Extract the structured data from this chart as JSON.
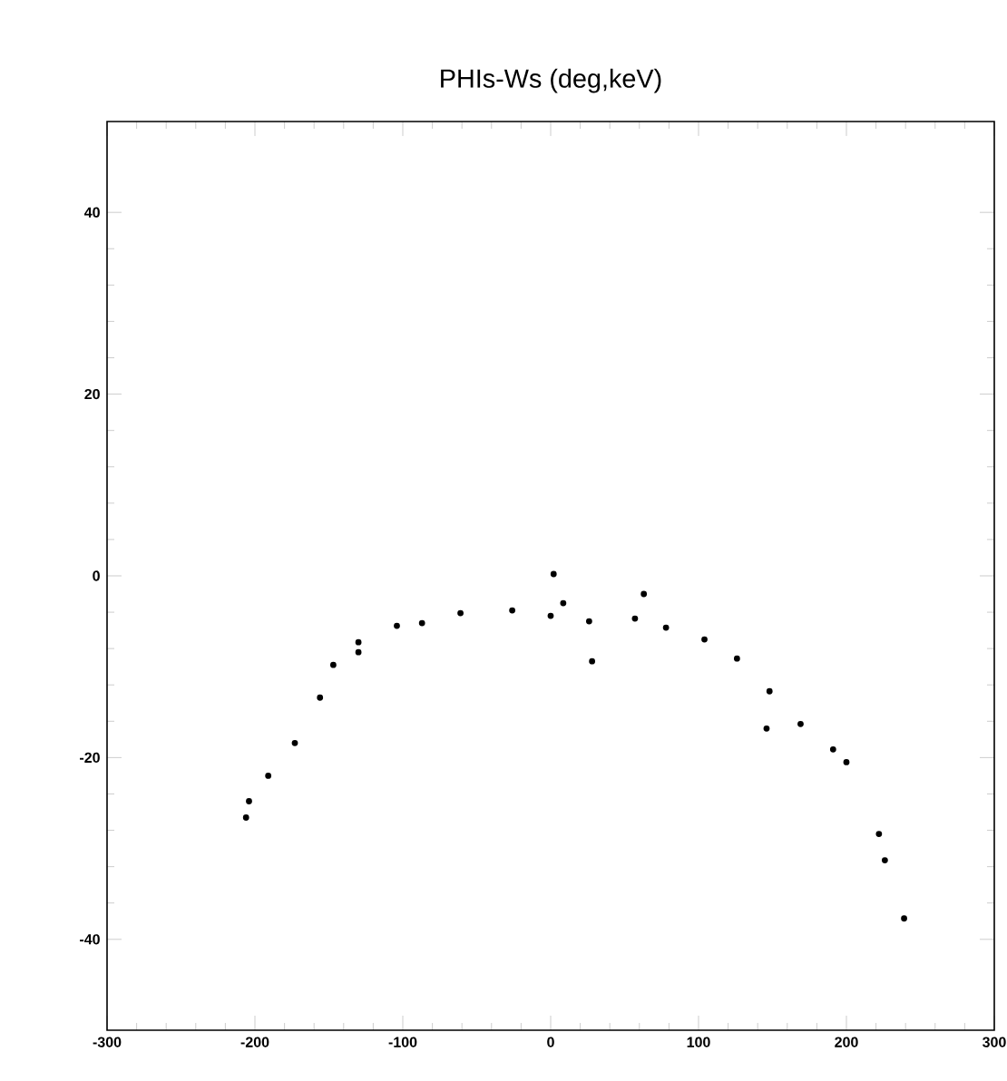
{
  "chart_data": {
    "type": "scatter",
    "title": "PHIs-Ws (deg,keV)",
    "x": [
      -206,
      -204,
      -191,
      -173,
      -156,
      -147,
      -130,
      -130,
      -104,
      -87,
      -61,
      -26,
      0,
      2,
      8.5,
      26,
      28,
      57,
      63,
      78,
      104,
      126,
      146,
      148,
      169,
      191,
      200,
      222,
      226,
      239
    ],
    "values": [
      -26.6,
      -24.8,
      -22,
      -18.4,
      -13.4,
      -9.8,
      -8.4,
      -7.3,
      -5.5,
      -5.2,
      -4.1,
      -3.8,
      -4.4,
      0.2,
      -3,
      -5,
      -9.4,
      -4.7,
      -2,
      -5.7,
      -7,
      -9.1,
      -16.8,
      -12.7,
      -16.3,
      -19.1,
      -20.5,
      -28.4,
      -31.3,
      -37.7
    ],
    "color": "#000000",
    "marker": "circle",
    "xlim": [
      -300,
      300
    ],
    "ylim": [
      -50,
      50
    ],
    "xticks": [
      -300,
      -200,
      -100,
      0,
      100,
      200,
      300
    ],
    "yticks": [
      -40,
      -20,
      0,
      20,
      40
    ],
    "grid": false
  }
}
